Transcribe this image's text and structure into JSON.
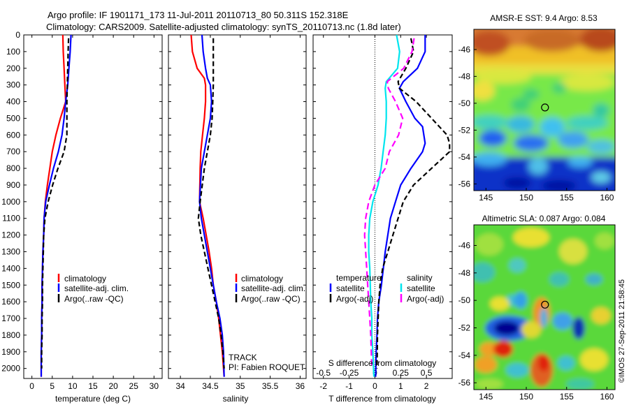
{
  "header": {
    "line1": "Argo profile: IF 1901171_173 11-Jul-2011 20110713_80 50.311S 152.318E",
    "line2": "Climatology: CARS2009. Satellite-adjusted climatology: synTS_20110713.nc (1.8d later)"
  },
  "watermark": "©IMOS 27-Sep-2011 21:58:45",
  "colors": {
    "climatology": "#ff0000",
    "satellite": "#0000ff",
    "argo": "#000000",
    "salinity_satellite": "#00e5ee",
    "salinity_argo": "#ff00ff"
  },
  "depth_ticks": [
    "0",
    "100",
    "200",
    "300",
    "400",
    "500",
    "600",
    "700",
    "800",
    "900",
    "1000",
    "1100",
    "1200",
    "1300",
    "1400",
    "1500",
    "1600",
    "1700",
    "1800",
    "1900",
    "2000"
  ],
  "chart_data": [
    {
      "type": "line",
      "panel": "temperature",
      "xlabel": "temperature (deg C)",
      "xticks": [
        "0",
        "5",
        "10",
        "15",
        "20",
        "25",
        "30"
      ],
      "xlim": [
        -2,
        32
      ],
      "ylim": [
        2060,
        0
      ],
      "legend": [
        "climatology",
        "satellite-adj. clim.",
        "Argo(..raw -QC)"
      ],
      "series": [
        {
          "name": "climatology",
          "color": "#ff0000",
          "dash": "",
          "x": [
            7.6,
            7.7,
            7.9,
            8.1,
            8.3,
            7.0,
            5.9,
            5.0,
            4.4,
            3.8,
            3.3,
            3.0,
            2.9,
            2.7,
            2.6,
            2.5,
            2.5,
            2.4,
            2.4,
            2.3,
            2.3
          ],
          "y": [
            0,
            100,
            200,
            300,
            400,
            500,
            600,
            700,
            800,
            900,
            1000,
            1100,
            1200,
            1300,
            1400,
            1500,
            1600,
            1700,
            1800,
            1900,
            2050
          ]
        },
        {
          "name": "satellite-adj. clim.",
          "color": "#0000ff",
          "dash": "",
          "x": [
            9.6,
            9.4,
            9.1,
            8.8,
            8.3,
            7.9,
            7.4,
            6.5,
            5.3,
            4.3,
            3.4,
            3.0,
            2.9,
            2.7,
            2.6,
            2.5,
            2.5,
            2.4,
            2.4,
            2.3,
            2.3
          ],
          "y": [
            0,
            100,
            200,
            300,
            400,
            500,
            600,
            700,
            800,
            900,
            1000,
            1100,
            1200,
            1300,
            1400,
            1500,
            1600,
            1700,
            1800,
            1900,
            2050
          ]
        },
        {
          "name": "Argo(..raw -QC)",
          "color": "#000000",
          "dash": "7,4",
          "x": [
            9.0,
            8.9,
            8.8,
            8.7,
            8.6,
            8.6,
            8.6,
            7.9,
            6.4,
            5.1,
            4.0,
            3.2,
            2.9,
            2.8,
            2.7,
            2.6,
            2.6,
            2.5,
            2.5,
            2.4,
            2.4
          ],
          "y": [
            20,
            100,
            200,
            300,
            400,
            500,
            600,
            700,
            800,
            900,
            1000,
            1100,
            1200,
            1300,
            1400,
            1500,
            1600,
            1700,
            1800,
            1900,
            2000
          ]
        }
      ]
    },
    {
      "type": "line",
      "panel": "salinity",
      "xlabel": "salinity",
      "xticks": [
        "34",
        "34.5",
        "35",
        "35.5",
        "36"
      ],
      "xlim": [
        33.8,
        36.1
      ],
      "ylim": [
        2060,
        0
      ],
      "legend": [
        "climatology",
        "satellite-adj. clim.",
        "Argo(..raw -QC)"
      ],
      "annotations": [
        "TRACK",
        "PI: Fabien ROQUET"
      ],
      "series": [
        {
          "name": "climatology",
          "color": "#ff0000",
          "dash": "",
          "x": [
            34.18,
            34.2,
            34.28,
            34.4,
            34.42,
            34.42,
            34.4,
            34.37,
            34.34,
            34.33,
            34.32,
            34.38,
            34.43,
            34.48,
            34.52,
            34.55,
            34.6,
            34.64,
            34.67,
            34.7,
            34.73
          ],
          "y": [
            0,
            100,
            200,
            260,
            300,
            400,
            500,
            600,
            700,
            800,
            1000,
            1100,
            1200,
            1300,
            1400,
            1500,
            1600,
            1700,
            1800,
            1900,
            2050
          ]
        },
        {
          "name": "satellite-adj. clim.",
          "color": "#0000ff",
          "dash": "",
          "x": [
            34.36,
            34.38,
            34.42,
            34.45,
            34.5,
            34.52,
            34.5,
            34.45,
            34.4,
            34.35,
            34.32,
            34.35,
            34.4,
            34.45,
            34.5,
            34.55,
            34.6,
            34.66,
            34.7,
            34.72,
            34.73
          ],
          "y": [
            0,
            100,
            200,
            260,
            300,
            400,
            500,
            600,
            700,
            800,
            1000,
            1100,
            1200,
            1300,
            1400,
            1500,
            1600,
            1700,
            1800,
            1900,
            2050
          ]
        },
        {
          "name": "Argo(..raw -QC)",
          "color": "#000000",
          "dash": "7,4",
          "x": [
            34.55,
            34.55,
            34.55,
            34.55,
            34.55,
            34.54,
            34.53,
            34.5,
            34.45,
            34.4,
            34.33,
            34.3,
            34.34,
            34.4,
            34.46,
            34.52,
            34.58,
            34.64,
            34.68,
            34.71,
            34.73
          ],
          "y": [
            20,
            100,
            200,
            260,
            300,
            400,
            500,
            600,
            700,
            800,
            1000,
            1100,
            1200,
            1300,
            1400,
            1500,
            1600,
            1700,
            1800,
            1900,
            2000
          ]
        }
      ]
    },
    {
      "type": "line",
      "panel": "differences",
      "xlabel": "T difference from climatology",
      "xticks": [
        "-2",
        "-1",
        "0",
        "1",
        "2"
      ],
      "xlim": [
        -2.4,
        3.0
      ],
      "top_axis_label": "S difference from climatology",
      "top_xticks": [
        "-0.5",
        "-0.25",
        "0",
        "0.25",
        "0.5"
      ],
      "ylim": [
        2060,
        0
      ],
      "legend_titles": [
        "temperature",
        "salinity"
      ],
      "legend": [
        "satellite",
        "Argo(-adj)",
        "satellite",
        "Argo(-adj)"
      ],
      "series": [
        {
          "name": "satellite",
          "group": "temperature",
          "color": "#0000ff",
          "dash": "",
          "axis": "T",
          "x": [
            1.95,
            1.95,
            1.65,
            1.1,
            0.95,
            1.2,
            1.55,
            1.85,
            1.95,
            1.85,
            1.4,
            1.0,
            0.8,
            0.6,
            0.4,
            0.25,
            0.15,
            0.1,
            0.08,
            0.05,
            0.03
          ],
          "y": [
            0,
            100,
            200,
            280,
            320,
            400,
            500,
            550,
            650,
            700,
            800,
            900,
            1000,
            1100,
            1300,
            1500,
            1600,
            1700,
            1800,
            1900,
            2050
          ]
        },
        {
          "name": "Argo(-adj)",
          "group": "temperature",
          "color": "#000000",
          "dash": "7,4",
          "axis": "T",
          "x": [
            1.4,
            1.5,
            1.2,
            0.9,
            0.95,
            1.6,
            2.2,
            2.8,
            2.9,
            2.9,
            2.2,
            1.5,
            1.1,
            0.9,
            0.7,
            0.5,
            0.3,
            0.2,
            0.15,
            0.1,
            0.08
          ],
          "y": [
            20,
            100,
            200,
            280,
            320,
            400,
            500,
            600,
            650,
            700,
            800,
            900,
            1000,
            1100,
            1200,
            1300,
            1400,
            1500,
            1600,
            1800,
            2000
          ]
        },
        {
          "name": "satellite",
          "group": "salinity",
          "color": "#00e5ee",
          "dash": "",
          "axis": "S",
          "x": [
            0.21,
            0.24,
            0.22,
            0.11,
            0.1,
            0.11,
            0.11,
            0.1,
            0.08,
            0.06,
            0.03,
            -0.02,
            -0.05,
            -0.06,
            -0.06,
            -0.05,
            -0.04,
            -0.03,
            -0.03,
            -0.02,
            -0.01
          ],
          "y": [
            0,
            100,
            200,
            280,
            320,
            400,
            500,
            600,
            700,
            800,
            900,
            1000,
            1100,
            1200,
            1300,
            1400,
            1600,
            1700,
            1800,
            1900,
            2050
          ]
        },
        {
          "name": "Argo(-adj)",
          "group": "salinity",
          "color": "#ff00ff",
          "dash": "9,5",
          "axis": "S",
          "x": [
            0.38,
            0.36,
            0.28,
            0.12,
            0.13,
            0.2,
            0.27,
            0.23,
            0.14,
            0.1,
            0.0,
            -0.06,
            -0.09,
            -0.1,
            -0.09,
            -0.08,
            -0.07,
            -0.06,
            -0.05,
            -0.04,
            -0.03
          ],
          "y": [
            20,
            100,
            200,
            280,
            320,
            400,
            500,
            600,
            700,
            800,
            900,
            1000,
            1100,
            1200,
            1300,
            1400,
            1500,
            1600,
            1700,
            1800,
            2000
          ]
        }
      ]
    },
    {
      "type": "heatmap",
      "panel": "sst_map",
      "title": "AMSR-E SST: 9.4 Argo: 8.53",
      "xticks": [
        "145",
        "150",
        "155",
        "160"
      ],
      "yticks": [
        "-46",
        "-48",
        "-50",
        "-52",
        "-54",
        "-56"
      ],
      "xlim": [
        143.5,
        161
      ],
      "ylim": [
        -56.5,
        -44.5
      ],
      "marker": {
        "lon": 152.318,
        "lat": -50.311
      }
    },
    {
      "type": "heatmap",
      "panel": "sla_map",
      "title": "Altimetric SLA: 0.087 Argo: 0.084",
      "xticks": [
        "145",
        "150",
        "155",
        "160"
      ],
      "yticks": [
        "-46",
        "-48",
        "-50",
        "-52",
        "-54",
        "-56"
      ],
      "xlim": [
        143.5,
        161
      ],
      "ylim": [
        -56.5,
        -44.5
      ],
      "marker": {
        "lon": 152.318,
        "lat": -50.311
      }
    }
  ]
}
